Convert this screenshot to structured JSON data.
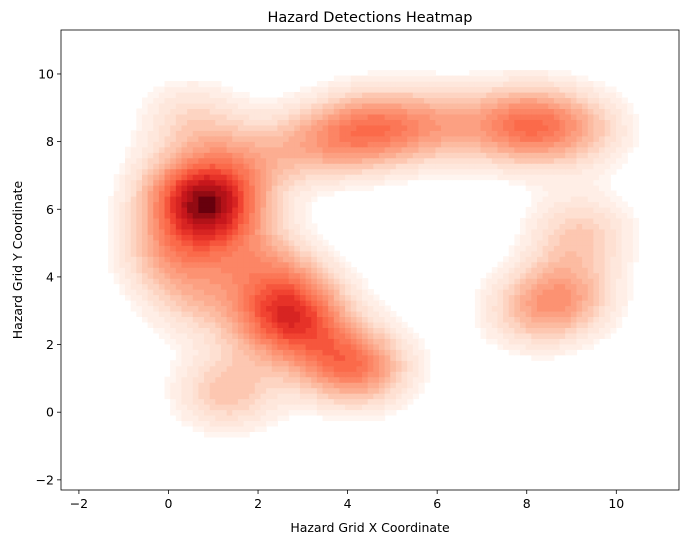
{
  "chart_data": {
    "type": "heatmap",
    "title": "Hazard Detections Heatmap",
    "xlabel": "Hazard Grid X Coordinate",
    "ylabel": "Hazard Grid Y Coordinate",
    "xlim": [
      -2.4,
      11.4
    ],
    "ylim": [
      -2.3,
      11.3
    ],
    "xticks": [
      -2,
      0,
      2,
      4,
      6,
      8,
      10
    ],
    "yticks": [
      -2,
      0,
      2,
      4,
      6,
      8,
      10
    ],
    "grid": false,
    "colormap": "Reds",
    "colors": {
      "low": "#fff5f0",
      "mid_low": "#fcbba1",
      "mid": "#fb6a4a",
      "mid_high": "#cb181d",
      "high": "#67000d"
    },
    "hotspots": [
      {
        "x": 1.0,
        "y": 6.0,
        "intensity": 1.0
      },
      {
        "x": 0.3,
        "y": 6.6,
        "intensity": 0.55
      },
      {
        "x": 0.1,
        "y": 4.7,
        "intensity": 0.55
      },
      {
        "x": 0.6,
        "y": 3.3,
        "intensity": 0.35
      },
      {
        "x": 1.3,
        "y": 0.6,
        "intensity": 0.5
      },
      {
        "x": 1.6,
        "y": 7.4,
        "intensity": 0.45
      },
      {
        "x": 2.5,
        "y": 2.7,
        "intensity": 0.75
      },
      {
        "x": 2.1,
        "y": 4.4,
        "intensity": 0.5
      },
      {
        "x": 3.0,
        "y": 3.3,
        "intensity": 0.45
      },
      {
        "x": 4.3,
        "y": 1.3,
        "intensity": 0.65
      },
      {
        "x": 3.6,
        "y": 1.7,
        "intensity": 0.4
      },
      {
        "x": 4.6,
        "y": 8.4,
        "intensity": 0.75
      },
      {
        "x": 3.3,
        "y": 8.0,
        "intensity": 0.5
      },
      {
        "x": 6.1,
        "y": 8.5,
        "intensity": 0.5
      },
      {
        "x": 7.9,
        "y": 8.5,
        "intensity": 0.8
      },
      {
        "x": 9.2,
        "y": 8.4,
        "intensity": 0.45
      },
      {
        "x": 8.8,
        "y": 3.4,
        "intensity": 0.6
      },
      {
        "x": 9.2,
        "y": 5.3,
        "intensity": 0.45
      },
      {
        "x": 8.0,
        "y": 2.9,
        "intensity": 0.3
      },
      {
        "x": 0.5,
        "y": 8.7,
        "intensity": 0.35
      }
    ]
  }
}
